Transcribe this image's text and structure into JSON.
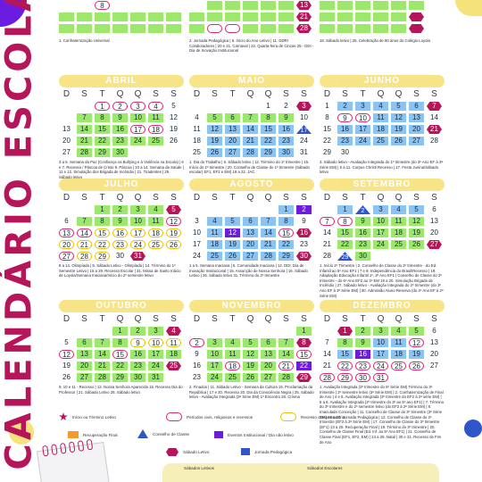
{
  "vertical_title": "CALENDÁRIO ESCOLAR",
  "weekdays": [
    "D",
    "S",
    "T",
    "Q",
    "Q",
    "S",
    "S"
  ],
  "top_partial_notes": [
    "1. Confraternização Universal",
    "2. Jornada Pedagógica | 6. Início do Ano Letivo | 11. DDRI Colaboradores | 20 e 21. Carnaval | 22. Quarta-feira de Cinzas 25 - DDI - Dia de Inovação Institucional",
    "18. Sábado letivo | 25. Celebração de 80 anos do Colégio Loyola"
  ],
  "top_partial_rows": [
    [
      "8",
      "",
      "",
      "",
      "",
      "",
      "13"
    ],
    [
      "",
      "",
      "",
      "",
      "",
      "",
      "21"
    ],
    [
      "",
      "",
      "",
      "",
      "",
      "",
      "28"
    ]
  ],
  "months": [
    {
      "name": "ABRIL",
      "rows": [
        [
          "",
          "",
          "1",
          "2",
          "3",
          "4",
          "5"
        ],
        [
          "",
          "7",
          "8",
          "9",
          "10",
          "11",
          "12"
        ],
        [
          "13",
          "14",
          "15",
          "16",
          "17",
          "18",
          "19"
        ],
        [
          "20",
          "21",
          "22",
          "23",
          "24",
          "25",
          "26"
        ],
        [
          "27",
          "28",
          "29",
          "30",
          "",
          "",
          ""
        ]
      ],
      "note": "3 a 5. Semana da Paz (Confiança na Bullying e à Violência na Escola) | 6 e 7. Recesso / Páscoa de Cristo 9. Páscoa | 10 a 14. Semana da Saúde | 11 e 12. Simulação dos Brigada de Incêndio | 21. Tiradentes | 29. Sábado letivo"
    },
    {
      "name": "MAIO",
      "rows": [
        [
          "",
          "",
          "",
          "",
          "1",
          "2",
          "3"
        ],
        [
          "4",
          "5",
          "6",
          "7",
          "8",
          "9",
          "10"
        ],
        [
          "11",
          "12",
          "13",
          "14",
          "15",
          "16",
          "17"
        ],
        [
          "18",
          "19",
          "20",
          "21",
          "22",
          "23",
          "24"
        ],
        [
          "25",
          "26",
          "27",
          "28",
          "29",
          "30",
          "31"
        ]
      ],
      "note": "1. Dia do Trabalho | 6. Sábado letivo | 12. Término do 1º trimestre | 15. Início do 2º trimestre | 20. Conselho de Classe do 1º trimestre (Sábado escolar) EF1, EF2 e EM) 19 a 22. JAC"
    },
    {
      "name": "JUNHO",
      "rows": [
        [
          "1",
          "2",
          "3",
          "4",
          "5",
          "6",
          "7"
        ],
        [
          "8",
          "9",
          "10",
          "11",
          "12",
          "13",
          "14"
        ],
        [
          "15",
          "16",
          "17",
          "18",
          "19",
          "20",
          "21"
        ],
        [
          "22",
          "23",
          "24",
          "25",
          "26",
          "27",
          "28"
        ],
        [
          "29",
          "30",
          "",
          "",
          "",
          "",
          ""
        ]
      ],
      "note": "3. Sábado letivo - Avaliação Integrada do 1º trimestre (do 3º Ano EF à 3ª Série EM) | 6 a 11. Corpus Christi Recesso | 17. Festa Junina/Sábado letivo"
    },
    {
      "name": "JULHO",
      "rows": [
        [
          "",
          "",
          "1",
          "2",
          "3",
          "4",
          "5"
        ],
        [
          "6",
          "7",
          "8",
          "9",
          "10",
          "11",
          "12"
        ],
        [
          "13",
          "14",
          "15",
          "16",
          "17",
          "18",
          "19"
        ],
        [
          "20",
          "21",
          "22",
          "23",
          "24",
          "25",
          "26"
        ],
        [
          "27",
          "28",
          "29",
          "30",
          "31",
          "",
          ""
        ]
      ],
      "note": "8 a 14. Olimpíada | 9. Sábado Letivo - Olimpíada | 14. Término do 1º Semestre Letivo | 15 a 29. Recesso Escolar | 31. Missa de Santo Inácio de Loyola/Semana Inaciana/Início do 2º semestre letivo"
    },
    {
      "name": "AGOSTO",
      "rows": [
        [
          "",
          "",
          "",
          "",
          "",
          "1",
          "2"
        ],
        [
          "3",
          "4",
          "5",
          "6",
          "7",
          "8",
          "9"
        ],
        [
          "10",
          "11",
          "12",
          "13",
          "14",
          "15",
          "16"
        ],
        [
          "17",
          "18",
          "19",
          "20",
          "21",
          "22",
          "23"
        ],
        [
          "24",
          "25",
          "26",
          "27",
          "28",
          "29",
          "30"
        ]
      ],
      "note": "1 a 5. Semana Inaciana | 5. Comunidade Inaciana | 12. DDI: Dia de Inovação Institucional | 15. Assunção de Nossa Senhora | 16. Sábado Letivo | 26. Sábado letivo 31. Término do 2º trimestre"
    },
    {
      "name": "SETEMBRO",
      "rows": [
        [
          "",
          "1",
          "2",
          "3",
          "4",
          "5",
          "6"
        ],
        [
          "7",
          "8",
          "9",
          "10",
          "11",
          "12",
          "13"
        ],
        [
          "14",
          "15",
          "16",
          "17",
          "18",
          "19",
          "20"
        ],
        [
          "21",
          "22",
          "23",
          "24",
          "25",
          "26",
          "27"
        ],
        [
          "28",
          "29",
          "30",
          "",
          "",
          "",
          ""
        ]
      ],
      "note": "1. Início 2º Trimestre | 2. Conselho de Classe do 2º trimestre - do Ed. Infantil ao 5º Ano EF1 | 7 e 8. Independência do Brasil/Recesso | 19. Adaptação Educação Infantil 1º, 3º Ano EF1 | Conselho de Classe do 2º trimestre - do 6º Ano EF2 ao 3º EM 19 a 20. Simulação Brigada de Incêndio | 27. Sábado letivo - Avaliação Integrada do 2º trimestre (do 3º Ano EF à 3ª Série EM) | 30. Admissão Aluno Reserva (do 4º Ano EF à 2ª Série EM)"
    },
    {
      "name": "OUTUBRO",
      "rows": [
        [
          "",
          "",
          "",
          "1",
          "2",
          "3",
          "4"
        ],
        [
          "5",
          "6",
          "7",
          "8",
          "9",
          "10",
          "11"
        ],
        [
          "12",
          "13",
          "14",
          "15",
          "16",
          "17",
          "18"
        ],
        [
          "19",
          "20",
          "21",
          "22",
          "23",
          "24",
          "25"
        ],
        [
          "26",
          "27",
          "28",
          "29",
          "30",
          "31",
          ""
        ]
      ],
      "note": "9, 10 e 11 - Recesso | 12. Nossa Senhora Aparecida 15. Recesso Dia do Professor | 21. Sábado Letivo 28. Sábado letivo"
    },
    {
      "name": "NOVEMBRO",
      "rows": [
        [
          "",
          "",
          "",
          "",
          "",
          "",
          "1"
        ],
        [
          "2",
          "3",
          "4",
          "5",
          "6",
          "7",
          "8"
        ],
        [
          "9",
          "10",
          "11",
          "12",
          "13",
          "14",
          "15"
        ],
        [
          "16",
          "17",
          "18",
          "19",
          "20",
          "21",
          "22"
        ],
        [
          "23",
          "24",
          "25",
          "26",
          "27",
          "28",
          "29"
        ]
      ],
      "note": "2. Finados | 11. Sábado Letivo - Semana da Cultura 15. Proclamação da República | 17 e 20. Recesso 20. Dia da Consciência Negra | 25. Sábado letivo - Avaliação Integrada (3ª Série EM) 1º Encontro 28. Crisma"
    },
    {
      "name": "DEZEMBRO",
      "rows": [
        [
          "",
          "1",
          "2",
          "3",
          "4",
          "5",
          "6"
        ],
        [
          "7",
          "8",
          "9",
          "10",
          "11",
          "12",
          "13"
        ],
        [
          "14",
          "15",
          "16",
          "17",
          "18",
          "19",
          "20"
        ],
        [
          "21",
          "22",
          "23",
          "24",
          "25",
          "26",
          "27"
        ],
        [
          "28",
          "29",
          "30",
          "31",
          "",
          "",
          ""
        ]
      ],
      "note": "1. Avaliação Integrada (2º trimestre do 5º Série EM) Término do 3º trimestre | 2º semestre letivo (3ª Série EM) | 2. Confraternização de Final de Ano | 4 e 5. Avaliação Integrada (3º trimestre do EF2 à 2ª série EM) | 5 a 6. Avaliação Integrada (2º trimestre do 3º ao 5º ano EF1) | 7. Término do 3º trimestre e do 2º semestre letivo (do EF2 à 2ª Série EM) | 8. Imaculada Conceição | 11. Conselho de Classe do 3º trimestre (3ª Série EM) 12 a 20. Jornada Pedagógica | 12. Conselho de Classe do 3º trimestre (EF2 à 2ª Série EM) | 17. Conselho de Classe do 3º trimestre (EF1) 13 a 20. Recuperação Final | 19. Término do 3º trimestre | 20. Conselho de Classe Final (Ed. Inf. ao 5º Ano EF1) | 21. Conselho de Classe Final (EF1, EF2, EM) | 24 a 25. Natal | 30 e 31. Recesso de Fim de Ano"
    }
  ],
  "legend": {
    "inicio_termino": "Início ou Término Letivo",
    "periodos": "Períodos civis, religiosos e recessos",
    "recesso_comp": "Recesso compensatório",
    "recuperacao": "Recuperação Final",
    "conselho": "Conselho de Classe",
    "eventos": "Eventos Institucional / Dia não letivo",
    "sabado": "Sábado Letivo",
    "jornada": "Jornada Pedagógica"
  },
  "footer": {
    "left": "Sábados Letivos",
    "right": "Sábados Escolares"
  },
  "colors": {
    "title": "#b7155a",
    "green": "#9be86d",
    "blue": "#8bc3f3",
    "header": "#f6e27a",
    "purple": "#6c1be0",
    "orange": "#f39a2a"
  }
}
